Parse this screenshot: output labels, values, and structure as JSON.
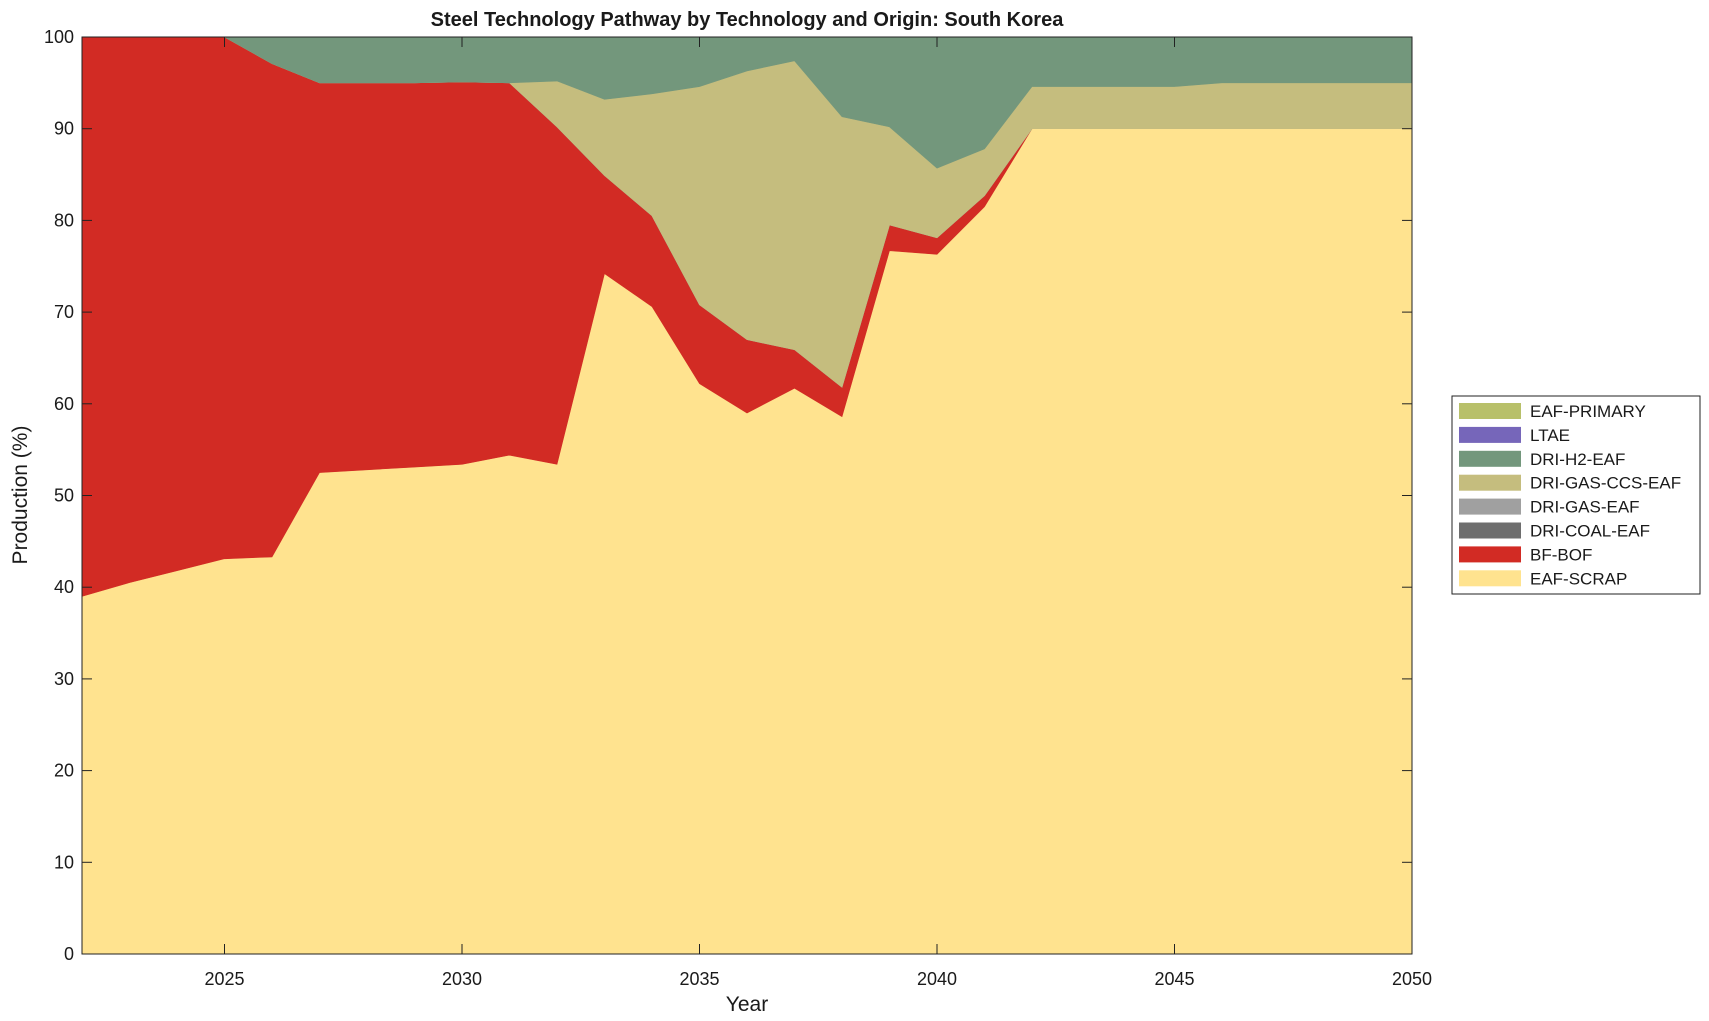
{
  "chart_data": {
    "type": "area",
    "stacked": true,
    "title": "Steel Technology Pathway by Technology and Origin: South Korea",
    "xlabel": "Year",
    "ylabel": "Production (%)",
    "xlim": [
      2022,
      2050
    ],
    "ylim": [
      0,
      100
    ],
    "xticks": [
      2025,
      2030,
      2035,
      2040,
      2045,
      2050
    ],
    "yticks": [
      0,
      10,
      20,
      30,
      40,
      50,
      60,
      70,
      80,
      90,
      100
    ],
    "grid": false,
    "legend_position": "right",
    "x": [
      2022,
      2023,
      2024,
      2025,
      2026,
      2027,
      2028,
      2029,
      2030,
      2031,
      2032,
      2033,
      2034,
      2035,
      2036,
      2037,
      2038,
      2039,
      2040,
      2041,
      2042,
      2043,
      2044,
      2045,
      2046,
      2047,
      2048,
      2049,
      2050
    ],
    "series": [
      {
        "name": "EAF-SCRAP",
        "color": "#FFE38F",
        "values": [
          39,
          40.5,
          41.8,
          43.1,
          43.3,
          52.5,
          52.8,
          53.1,
          53.4,
          54.4,
          53.4,
          74.2,
          70.6,
          62.2,
          59,
          61.7,
          58.6,
          76.7,
          76.3,
          81.5,
          90,
          90,
          90,
          90,
          90,
          90,
          90,
          90,
          90
        ]
      },
      {
        "name": "BF-BOF",
        "color": "#D22B24",
        "values": [
          61,
          59.5,
          58.2,
          56.9,
          53.8,
          42.5,
          42.2,
          41.9,
          41.7,
          40.6,
          36.8,
          10.7,
          9.9,
          8.6,
          8,
          4.2,
          3.2,
          2.8,
          1.8,
          1.2,
          0,
          0,
          0,
          0,
          0,
          0,
          0,
          0,
          0
        ]
      },
      {
        "name": "DRI-COAL-EAF",
        "color": "#6E6E6E",
        "values": [
          0,
          0,
          0,
          0,
          0,
          0,
          0,
          0,
          0,
          0,
          0,
          0,
          0,
          0,
          0,
          0,
          0,
          0,
          0,
          0,
          0,
          0,
          0,
          0,
          0,
          0,
          0,
          0,
          0
        ]
      },
      {
        "name": "DRI-GAS-EAF",
        "color": "#A0A0A0",
        "values": [
          0,
          0,
          0,
          0,
          0,
          0,
          0,
          0,
          0,
          0,
          0,
          0,
          0,
          0,
          0,
          0,
          0,
          0,
          0,
          0,
          0,
          0,
          0,
          0,
          0,
          0,
          0,
          0,
          0
        ]
      },
      {
        "name": "DRI-GAS-CCS-EAF",
        "color": "#C5BD7E",
        "values": [
          0,
          0,
          0,
          0,
          0,
          0,
          0,
          0,
          0,
          0,
          5,
          8.3,
          13.3,
          23.8,
          29.3,
          31.5,
          29.5,
          10.7,
          7.6,
          5.1,
          4.6,
          4.6,
          4.6,
          4.6,
          5,
          5,
          5,
          5,
          5
        ]
      },
      {
        "name": "DRI-H2-EAF",
        "color": "#73977C",
        "values": [
          0,
          0,
          0,
          0,
          2.9,
          5,
          5,
          5,
          4.9,
          5,
          4.8,
          6.8,
          6.2,
          5.4,
          3.7,
          2.6,
          8.7,
          9.8,
          14.3,
          12.2,
          5.4,
          5.4,
          5.4,
          5.4,
          5,
          5,
          5,
          5,
          5
        ]
      },
      {
        "name": "LTAE",
        "color": "#7666BA",
        "values": [
          0,
          0,
          0,
          0,
          0,
          0,
          0,
          0,
          0,
          0,
          0,
          0,
          0,
          0,
          0,
          0,
          0,
          0,
          0,
          0,
          0,
          0,
          0,
          0,
          0,
          0,
          0,
          0,
          0
        ]
      },
      {
        "name": "EAF-PRIMARY",
        "color": "#B8C06A",
        "values": [
          0,
          0,
          0,
          0,
          0,
          0,
          0,
          0,
          0,
          0,
          0,
          0,
          0,
          0,
          0,
          0,
          0,
          0,
          0,
          0,
          0,
          0,
          0,
          0,
          0,
          0,
          0,
          0,
          0
        ]
      }
    ],
    "legend_order": [
      "EAF-PRIMARY",
      "LTAE",
      "DRI-H2-EAF",
      "DRI-GAS-CCS-EAF",
      "DRI-GAS-EAF",
      "DRI-COAL-EAF",
      "BF-BOF",
      "EAF-SCRAP"
    ]
  }
}
